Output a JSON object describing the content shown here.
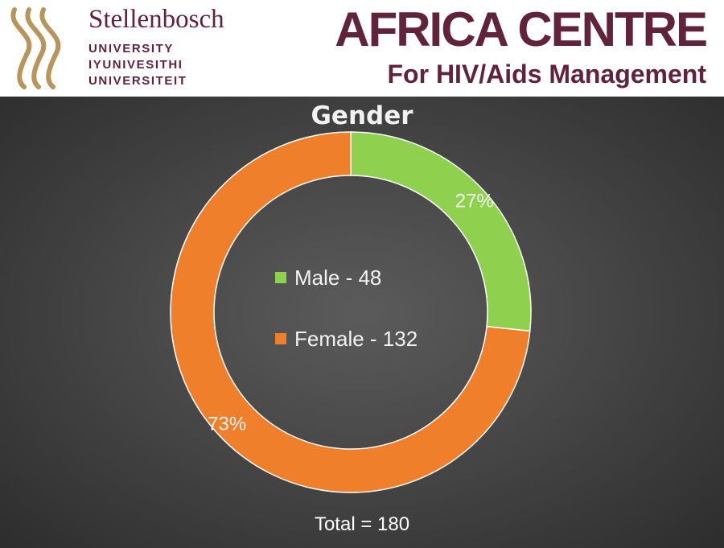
{
  "header": {
    "university_name": "Stellenbosch",
    "university_lines": [
      "UNIVERSITY",
      "IYUNIVESITHI",
      "UNIVERSITEIT"
    ],
    "centre_title": "AFRICA CENTRE",
    "centre_subtitle": "For HIV/Aids Management",
    "brand_color": "#61223b",
    "logo_color": "#b8955a"
  },
  "chart_data": {
    "type": "pie",
    "variant": "donut",
    "title": "Gender",
    "series": [
      {
        "name": "Male - 48",
        "value": 48,
        "percent_label": "27%",
        "color": "#8fd14f"
      },
      {
        "name": "Female - 132",
        "value": 132,
        "percent_label": "73%",
        "color": "#f07f2b"
      }
    ],
    "legend_position": "center",
    "total_label": "Total = 180"
  }
}
